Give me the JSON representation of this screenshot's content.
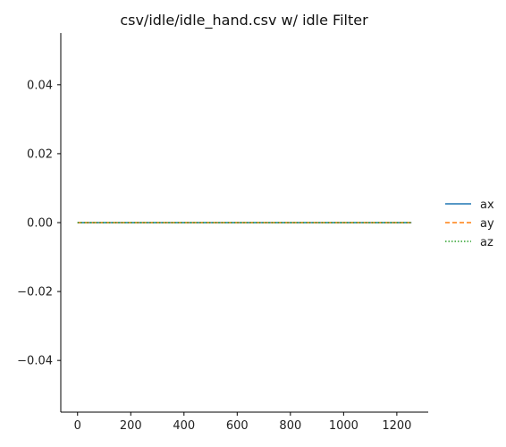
{
  "chart_data": {
    "type": "line",
    "title": "csv/idle/idle_hand.csv w/  idle Filter",
    "xlabel": "",
    "ylabel": "",
    "xlim": [
      -63,
      1318
    ],
    "ylim": [
      -0.055,
      0.055
    ],
    "xticks": [
      0,
      200,
      400,
      600,
      800,
      1000,
      1200
    ],
    "yticks": [
      -0.04,
      -0.02,
      0.0,
      0.02,
      0.04
    ],
    "ytick_labels": [
      "−0.04",
      "−0.02",
      "0.00",
      "0.02",
      "0.04"
    ],
    "grid": false,
    "legend": "right",
    "series": [
      {
        "name": "ax",
        "color": "#1f77b4",
        "dash": "solid",
        "x": [
          0,
          1255
        ],
        "y": [
          0.0,
          0.0
        ]
      },
      {
        "name": "ay",
        "color": "#ff7f0e",
        "dash": "dashed",
        "x": [
          0,
          1255
        ],
        "y": [
          0.0,
          0.0
        ]
      },
      {
        "name": "az",
        "color": "#2ca02c",
        "dash": "dotted",
        "x": [
          0,
          1255
        ],
        "y": [
          0.0,
          0.0
        ]
      }
    ]
  }
}
